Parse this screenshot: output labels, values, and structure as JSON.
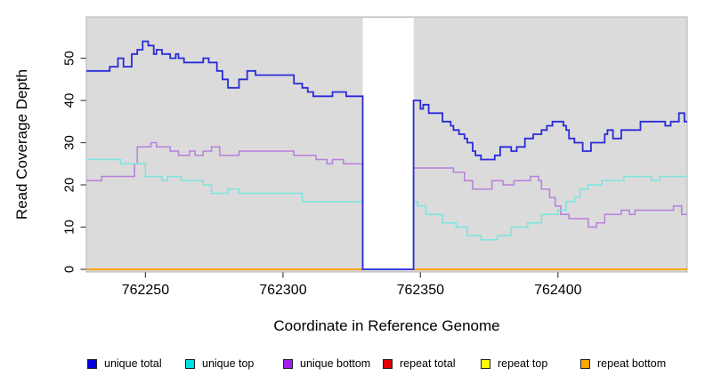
{
  "chart_data": {
    "type": "line",
    "style": "step",
    "title": "",
    "xlabel": "Coordinate in Reference Genome",
    "ylabel": "Read Coverage Depth",
    "xlim": [
      762228.5,
      762447
    ],
    "ylim": [
      0,
      59.8
    ],
    "x_ticks": [
      762250,
      762300,
      762350,
      762400
    ],
    "y_ticks": [
      0,
      10,
      20,
      30,
      40,
      50
    ],
    "grid": false,
    "legend_position": "bottom",
    "plot_bg": "#DBDBDB",
    "plot_border": "#B3B3B3",
    "axis_color": "#444444",
    "tick_label_color": "#000000",
    "gap_region": {
      "start": 762329,
      "end": 762347.5,
      "color": "#FFFFFF"
    },
    "draw_order": [
      "repeat total",
      "repeat top",
      "repeat bottom",
      "unique bottom",
      "unique top",
      "unique total"
    ],
    "series": [
      {
        "name": "unique total",
        "legend_color": "#0000E1",
        "line_color": "#2B2BD9",
        "width": 1.8,
        "points": [
          [
            762228.5,
            47
          ],
          [
            762237,
            48
          ],
          [
            762240,
            50
          ],
          [
            762242,
            48
          ],
          [
            762245,
            51
          ],
          [
            762247,
            52
          ],
          [
            762249,
            54
          ],
          [
            762251,
            53
          ],
          [
            762253,
            51
          ],
          [
            762254,
            52
          ],
          [
            762256,
            51
          ],
          [
            762259,
            50
          ],
          [
            762261,
            51
          ],
          [
            762262,
            50
          ],
          [
            762264,
            49
          ],
          [
            762271,
            50
          ],
          [
            762273,
            49
          ],
          [
            762276,
            47
          ],
          [
            762278,
            45
          ],
          [
            762280,
            43
          ],
          [
            762284,
            45
          ],
          [
            762287,
            47
          ],
          [
            762290,
            46
          ],
          [
            762304,
            44
          ],
          [
            762307,
            43
          ],
          [
            762309,
            42
          ],
          [
            762311,
            41
          ],
          [
            762318,
            42
          ],
          [
            762323,
            41
          ],
          [
            762329,
            0
          ],
          [
            762347.5,
            40
          ],
          [
            762350,
            38
          ],
          [
            762351,
            39
          ],
          [
            762353,
            37
          ],
          [
            762358,
            35
          ],
          [
            762361,
            34
          ],
          [
            762362,
            33
          ],
          [
            762364,
            32
          ],
          [
            762366,
            31
          ],
          [
            762367,
            30
          ],
          [
            762369,
            28
          ],
          [
            762370,
            27
          ],
          [
            762372,
            26
          ],
          [
            762377,
            27
          ],
          [
            762379,
            29
          ],
          [
            762383,
            28
          ],
          [
            762385,
            29
          ],
          [
            762388,
            31
          ],
          [
            762391,
            32
          ],
          [
            762394,
            33
          ],
          [
            762396,
            34
          ],
          [
            762398,
            35
          ],
          [
            762402,
            34
          ],
          [
            762403,
            33
          ],
          [
            762404,
            31
          ],
          [
            762406,
            30
          ],
          [
            762409,
            28
          ],
          [
            762412,
            30
          ],
          [
            762417,
            32
          ],
          [
            762418,
            33
          ],
          [
            762420,
            31
          ],
          [
            762423,
            33
          ],
          [
            762430,
            35
          ],
          [
            762439,
            34
          ],
          [
            762441,
            35
          ],
          [
            762444,
            37
          ],
          [
            762446,
            35
          ]
        ]
      },
      {
        "name": "unique top",
        "legend_color": "#00DFE8",
        "line_color": "#79E5E0",
        "width": 1.5,
        "points": [
          [
            762228.5,
            26
          ],
          [
            762241,
            25
          ],
          [
            762250,
            22
          ],
          [
            762256,
            21
          ],
          [
            762258,
            22
          ],
          [
            762263,
            21
          ],
          [
            762271,
            20
          ],
          [
            762274,
            18
          ],
          [
            762280,
            19
          ],
          [
            762284,
            18
          ],
          [
            762307,
            16
          ],
          [
            762329,
            0
          ],
          [
            762347.5,
            16
          ],
          [
            762349,
            15
          ],
          [
            762352,
            13
          ],
          [
            762358,
            11
          ],
          [
            762363,
            10
          ],
          [
            762367,
            8
          ],
          [
            762372,
            7
          ],
          [
            762378,
            8
          ],
          [
            762383,
            10
          ],
          [
            762389,
            11
          ],
          [
            762394,
            13
          ],
          [
            762400,
            14
          ],
          [
            762403,
            16
          ],
          [
            762406,
            17
          ],
          [
            762408,
            19
          ],
          [
            762411,
            20
          ],
          [
            762416,
            21
          ],
          [
            762424,
            22
          ],
          [
            762434,
            21
          ],
          [
            762437,
            22
          ]
        ]
      },
      {
        "name": "unique bottom",
        "legend_color": "#A01EEC",
        "line_color": "#B77FDF",
        "width": 1.5,
        "points": [
          [
            762228.5,
            21
          ],
          [
            762234,
            22
          ],
          [
            762246,
            25
          ],
          [
            762247,
            29
          ],
          [
            762252,
            30
          ],
          [
            762254,
            29
          ],
          [
            762259,
            28
          ],
          [
            762262,
            27
          ],
          [
            762266,
            28
          ],
          [
            762268,
            27
          ],
          [
            762271,
            28
          ],
          [
            762274,
            29
          ],
          [
            762277,
            27
          ],
          [
            762284,
            28
          ],
          [
            762304,
            27
          ],
          [
            762312,
            26
          ],
          [
            762316,
            25
          ],
          [
            762318,
            26
          ],
          [
            762322,
            25
          ],
          [
            762329,
            0
          ],
          [
            762347.5,
            24
          ],
          [
            762362,
            23
          ],
          [
            762366,
            21
          ],
          [
            762369,
            19
          ],
          [
            762376,
            21
          ],
          [
            762380,
            20
          ],
          [
            762384,
            21
          ],
          [
            762390,
            22
          ],
          [
            762393,
            21
          ],
          [
            762394,
            19
          ],
          [
            762397,
            17
          ],
          [
            762399,
            15
          ],
          [
            762401,
            13
          ],
          [
            762404,
            12
          ],
          [
            762411,
            10
          ],
          [
            762414,
            11
          ],
          [
            762417,
            13
          ],
          [
            762423,
            14
          ],
          [
            762426,
            13
          ],
          [
            762428,
            14
          ],
          [
            762442,
            15
          ],
          [
            762445,
            13
          ]
        ]
      },
      {
        "name": "repeat total",
        "legend_color": "#DF0000",
        "line_color": "#DF0000",
        "width": 1.6,
        "points": [
          [
            762228.5,
            0
          ]
        ]
      },
      {
        "name": "repeat top",
        "legend_color": "#FFFF00",
        "line_color": "#FFFF00",
        "width": 1.6,
        "points": [
          [
            762228.5,
            0
          ]
        ]
      },
      {
        "name": "repeat bottom",
        "legend_color": "#FFA500",
        "line_color": "#FFA500",
        "width": 2,
        "points": [
          [
            762228.5,
            0
          ]
        ]
      }
    ]
  }
}
